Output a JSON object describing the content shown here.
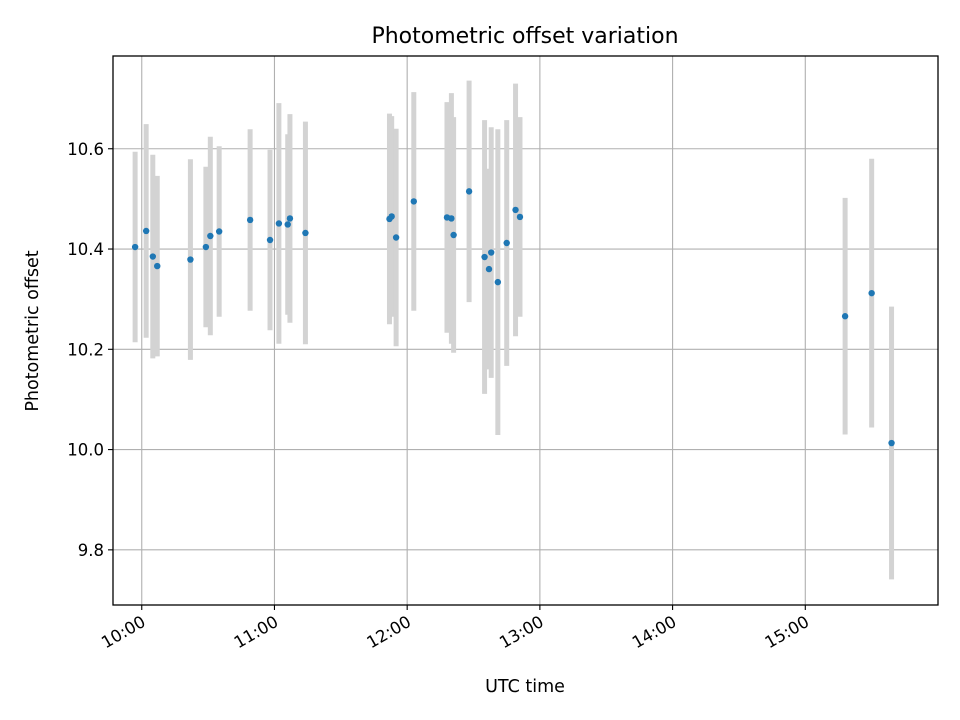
{
  "chart_data": {
    "type": "scatter",
    "title": "Photometric offset variation",
    "xlabel": "UTC time",
    "ylabel": "Photometric offset",
    "x_unit": "UTC time (HH:MM)",
    "xlim": [
      "09:47",
      "16:00"
    ],
    "ylim": [
      9.69,
      10.785
    ],
    "x_ticks": [
      "10:00",
      "11:00",
      "12:00",
      "13:00",
      "14:00",
      "15:00"
    ],
    "y_ticks": [
      "9.8",
      "10.0",
      "10.2",
      "10.4",
      "10.6"
    ],
    "grid": true,
    "colors": {
      "marker": "#1f77b4",
      "errorbar": "#d3d3d3",
      "grid": "#b0b0b0"
    },
    "points": [
      {
        "x": "09:57",
        "y": 10.404,
        "err": 0.19
      },
      {
        "x": "10:02",
        "y": 10.436,
        "err": 0.213
      },
      {
        "x": "10:05",
        "y": 10.385,
        "err": 0.203
      },
      {
        "x": "10:07",
        "y": 10.366,
        "err": 0.18
      },
      {
        "x": "10:22",
        "y": 10.379,
        "err": 0.2
      },
      {
        "x": "10:29",
        "y": 10.404,
        "err": 0.16
      },
      {
        "x": "10:31",
        "y": 10.426,
        "err": 0.198
      },
      {
        "x": "10:35",
        "y": 10.435,
        "err": 0.17
      },
      {
        "x": "10:49",
        "y": 10.458,
        "err": 0.181
      },
      {
        "x": "10:58",
        "y": 10.418,
        "err": 0.18
      },
      {
        "x": "11:02",
        "y": 10.451,
        "err": 0.24
      },
      {
        "x": "11:06",
        "y": 10.449,
        "err": 0.18
      },
      {
        "x": "11:07",
        "y": 10.461,
        "err": 0.208
      },
      {
        "x": "11:14",
        "y": 10.432,
        "err": 0.222
      },
      {
        "x": "11:52",
        "y": 10.46,
        "err": 0.21
      },
      {
        "x": "11:53",
        "y": 10.465,
        "err": 0.2
      },
      {
        "x": "11:55",
        "y": 10.423,
        "err": 0.217
      },
      {
        "x": "12:03",
        "y": 10.495,
        "err": 0.218
      },
      {
        "x": "12:18",
        "y": 10.463,
        "err": 0.23
      },
      {
        "x": "12:20",
        "y": 10.461,
        "err": 0.25
      },
      {
        "x": "12:21",
        "y": 10.428,
        "err": 0.235
      },
      {
        "x": "12:28",
        "y": 10.515,
        "err": 0.221
      },
      {
        "x": "12:35",
        "y": 10.384,
        "err": 0.273
      },
      {
        "x": "12:37",
        "y": 10.36,
        "err": 0.2
      },
      {
        "x": "12:38",
        "y": 10.393,
        "err": 0.25
      },
      {
        "x": "12:41",
        "y": 10.334,
        "err": 0.305
      },
      {
        "x": "12:45",
        "y": 10.412,
        "err": 0.245
      },
      {
        "x": "12:49",
        "y": 10.478,
        "err": 0.252
      },
      {
        "x": "12:51",
        "y": 10.464,
        "err": 0.199
      },
      {
        "x": "15:18",
        "y": 10.266,
        "err": 0.236
      },
      {
        "x": "15:30",
        "y": 10.312,
        "err": 0.268
      },
      {
        "x": "15:39",
        "y": 10.013,
        "err": 0.272
      }
    ]
  }
}
